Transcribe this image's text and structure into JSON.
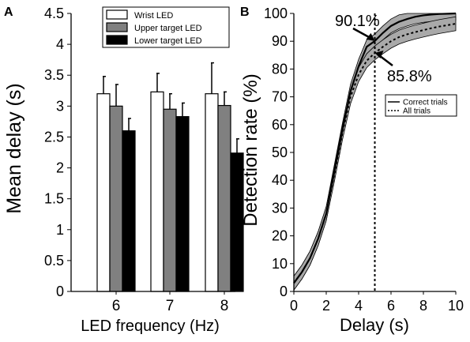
{
  "chart_data": [
    {
      "panel_label": "A",
      "type": "bar",
      "categories": [
        "6",
        "7",
        "8"
      ],
      "series": [
        {
          "name": "Wrist LED",
          "color": "#ffffff",
          "values": [
            3.2,
            3.23,
            3.2
          ],
          "errors": [
            0.28,
            0.3,
            0.5
          ]
        },
        {
          "name": "Upper target LED",
          "color": "#808080",
          "values": [
            3.0,
            2.95,
            3.01
          ],
          "errors": [
            0.35,
            0.25,
            0.22
          ]
        },
        {
          "name": "Lower target LED",
          "color": "#000000",
          "values": [
            2.6,
            2.83,
            2.24
          ],
          "errors": [
            0.2,
            0.22,
            0.23
          ]
        }
      ],
      "xlabel": "LED frequency (Hz)",
      "ylabel": "Mean delay (s)",
      "ylim": [
        0,
        4.5
      ],
      "yticks": [
        "0",
        "0.5",
        "1",
        "1.5",
        "2",
        "2.5",
        "3",
        "3.5",
        "4",
        "4.5"
      ],
      "legend_position": "top-right"
    },
    {
      "panel_label": "B",
      "type": "line",
      "xlabel": "Delay (s)",
      "ylabel": "Detection rate (%)",
      "xlim": [
        0,
        10
      ],
      "ylim": [
        0,
        100
      ],
      "xticks": [
        "0",
        "2",
        "4",
        "6",
        "8",
        "10"
      ],
      "yticks": [
        "0",
        "10",
        "20",
        "30",
        "40",
        "50",
        "60",
        "70",
        "80",
        "90",
        "100"
      ],
      "x": [
        0,
        0.5,
        1,
        1.5,
        2,
        2.5,
        3,
        3.5,
        4,
        4.5,
        5,
        5.5,
        6,
        6.5,
        7,
        7.5,
        8,
        8.5,
        9,
        9.5,
        10
      ],
      "series": [
        {
          "name": "Correct trials",
          "style": "solid",
          "values": [
            3,
            7,
            12,
            19,
            28,
            43,
            58,
            72,
            81,
            88,
            90.1,
            93,
            95.5,
            97,
            98,
            98.8,
            99.3,
            99.6,
            99.8,
            99.9,
            100
          ],
          "band": 2.5
        },
        {
          "name": "All trials",
          "style": "dotted",
          "values": [
            3,
            7,
            12,
            19,
            28,
            42,
            57,
            70,
            78,
            83,
            85.8,
            88,
            90,
            91.5,
            92.5,
            93.3,
            94,
            94.7,
            95.3,
            95.8,
            96.3
          ],
          "band": 2.5
        }
      ],
      "vline_x": 5,
      "annotations": [
        {
          "text": "90.1%",
          "x": 5,
          "y": 90.1
        },
        {
          "text": "85.8%",
          "x": 5,
          "y": 85.8
        }
      ],
      "band_color": "#a9a9a9",
      "legend_position": "right"
    }
  ]
}
